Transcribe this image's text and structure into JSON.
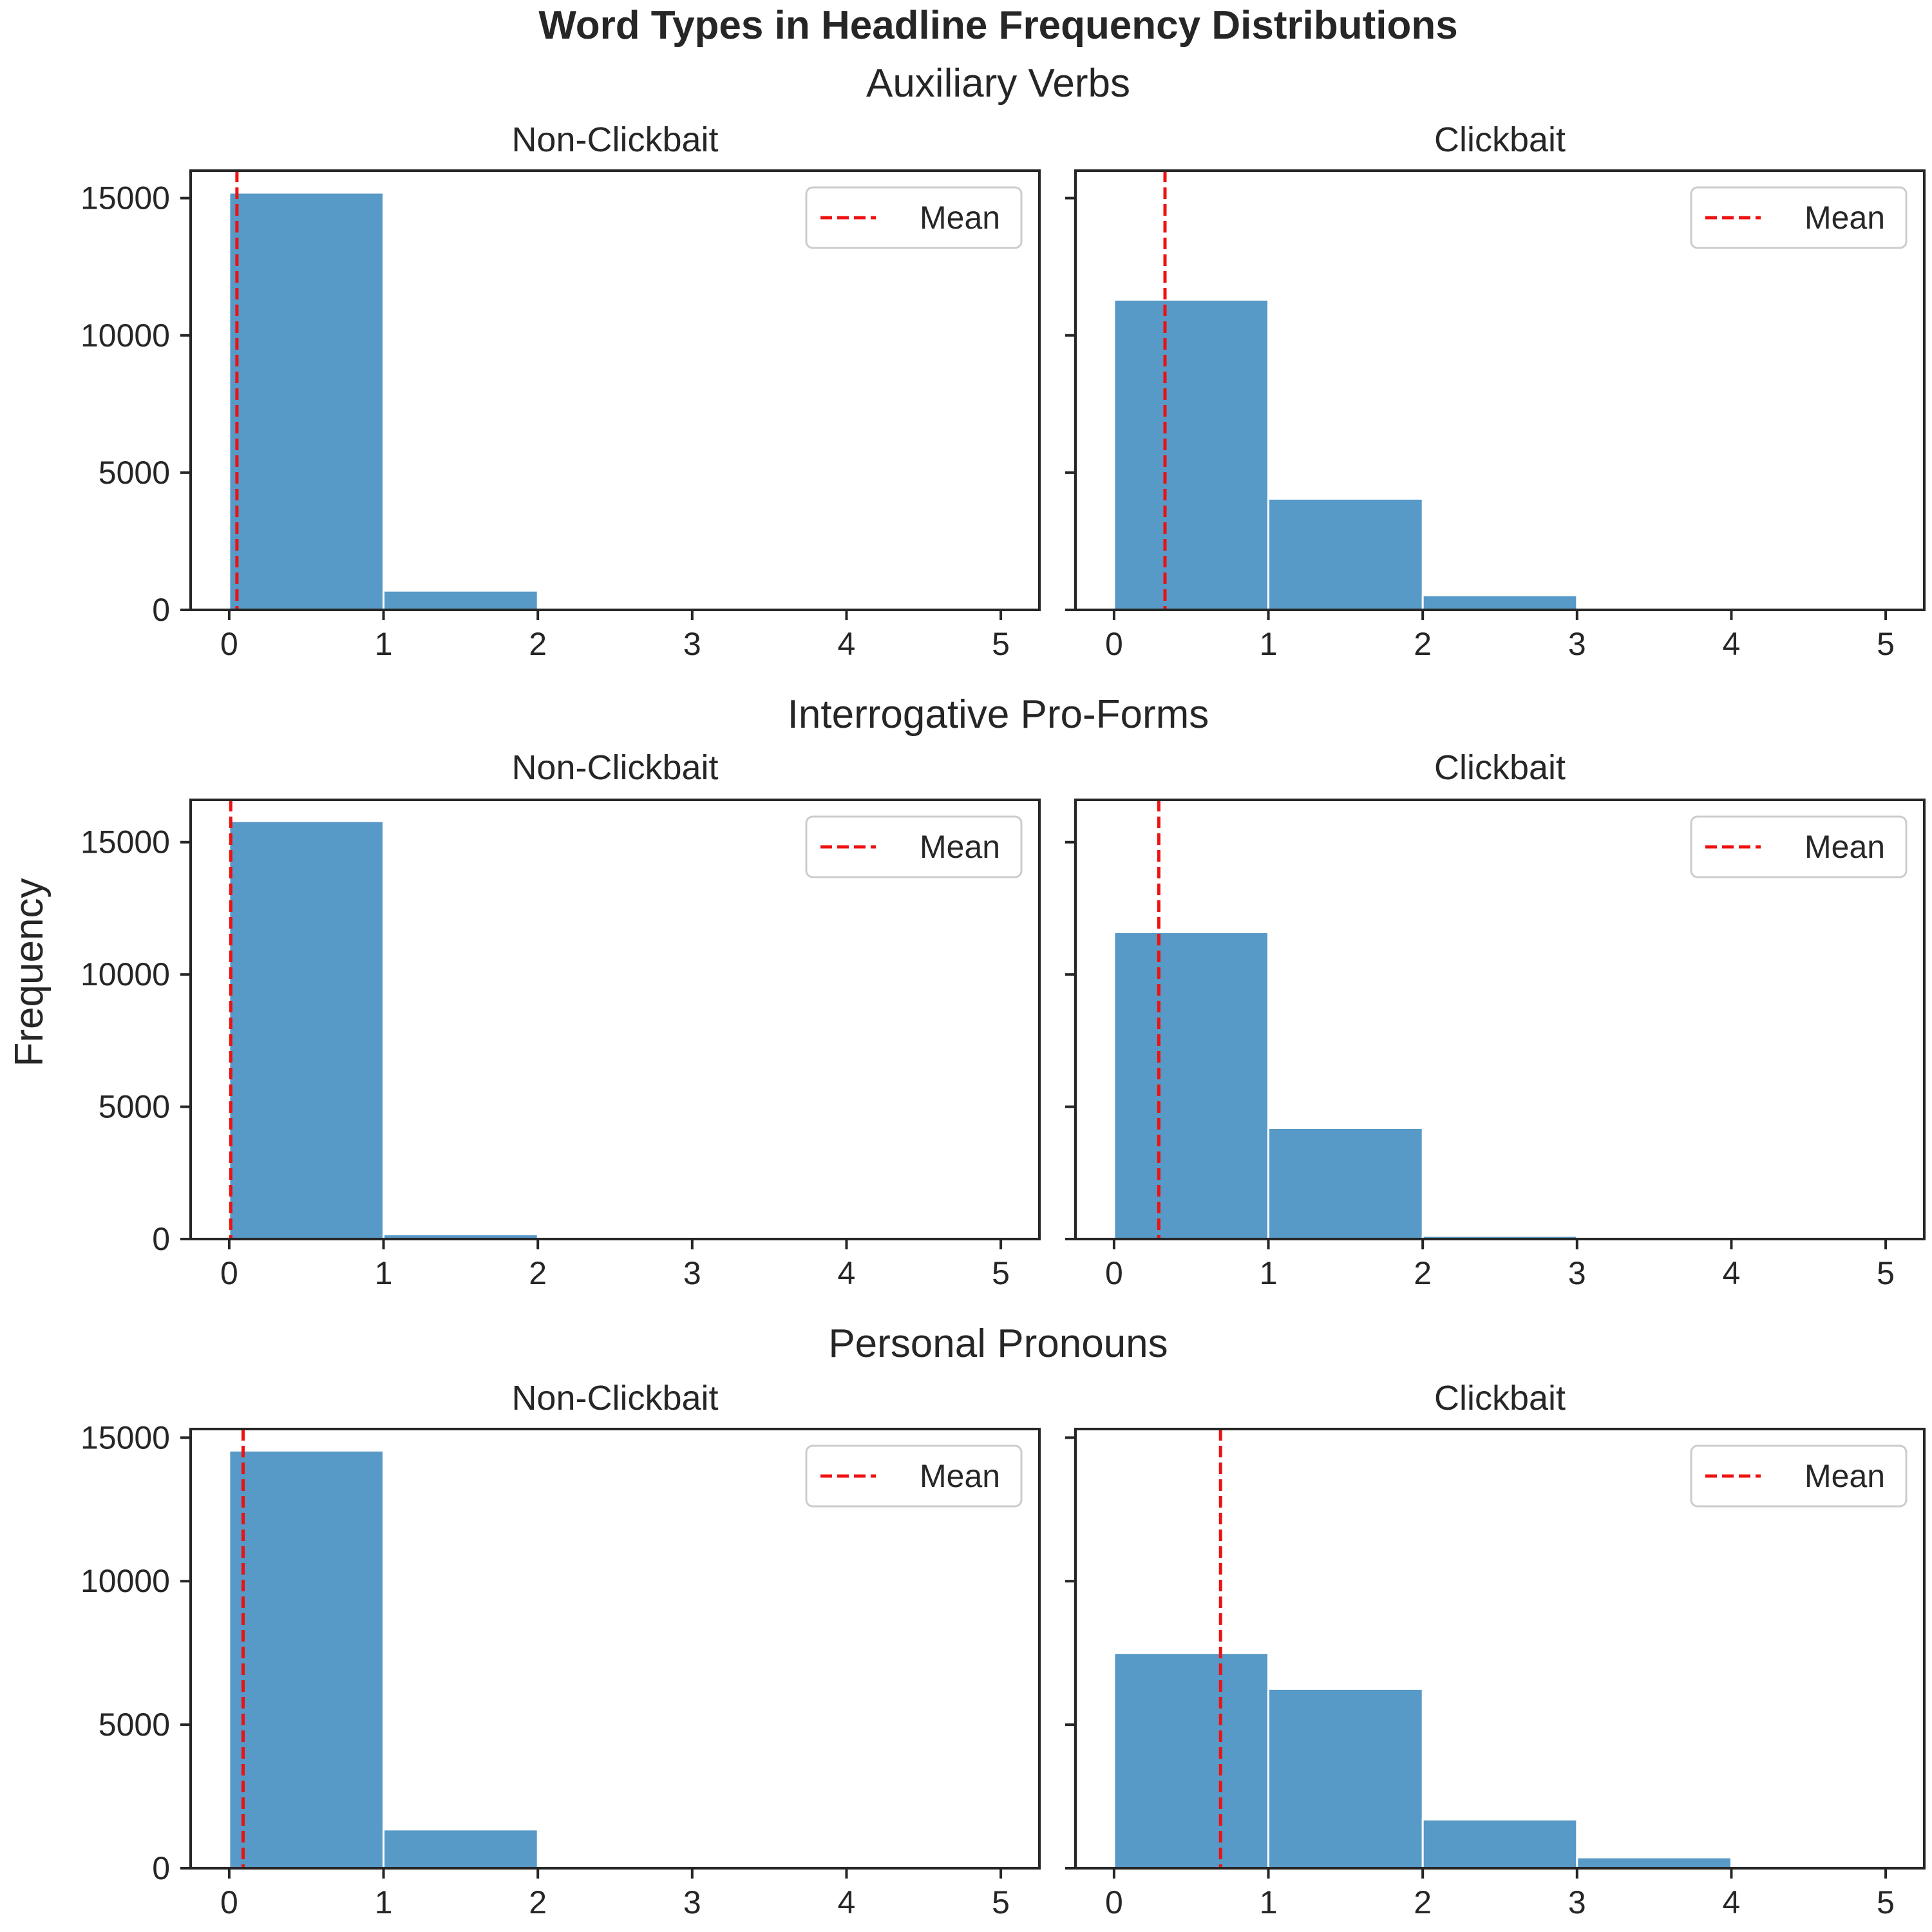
{
  "figure": {
    "title": "Word Types in Headline Frequency Distributions",
    "ylabel": "Frequency"
  },
  "colors": {
    "bar": "#5799c7",
    "mean_line": "#ee1111",
    "axis": "#262626",
    "legend_border": "#cccccc"
  },
  "chart_data": [
    {
      "type": "bar",
      "row_title": "Auxiliary Verbs",
      "title": "Non-Clickbait",
      "xlabel": "",
      "ylabel": "",
      "bin_edges": [
        0,
        1,
        2,
        3,
        4,
        5
      ],
      "values": [
        15200,
        700,
        0,
        0,
        0
      ],
      "mean": 0.05,
      "legend": [
        "Mean"
      ],
      "legend_position": "top-right",
      "xlim": [
        -0.25,
        5.25
      ],
      "ylim": [
        0,
        16000
      ],
      "xticks": [
        0,
        1,
        2,
        3,
        4,
        5
      ],
      "yticks": [
        0,
        5000,
        10000,
        15000
      ],
      "show_ytick_labels": true
    },
    {
      "type": "bar",
      "row_title": "Auxiliary Verbs",
      "title": "Clickbait",
      "xlabel": "",
      "ylabel": "",
      "bin_edges": [
        0,
        1,
        2,
        3,
        4,
        5
      ],
      "values": [
        11300,
        4050,
        530,
        0,
        0
      ],
      "mean": 0.33,
      "legend": [
        "Mean"
      ],
      "legend_position": "top-right",
      "xlim": [
        -0.25,
        5.25
      ],
      "ylim": [
        0,
        16000
      ],
      "xticks": [
        0,
        1,
        2,
        3,
        4,
        5
      ],
      "yticks": [
        0,
        5000,
        10000,
        15000
      ],
      "show_ytick_labels": false
    },
    {
      "type": "bar",
      "row_title": "Interrogative Pro-Forms",
      "title": "Non-Clickbait",
      "xlabel": "",
      "ylabel": "Frequency",
      "bin_edges": [
        0,
        1,
        2,
        3,
        4,
        5
      ],
      "values": [
        15800,
        180,
        0,
        0,
        0
      ],
      "mean": 0.01,
      "legend": [
        "Mean"
      ],
      "legend_position": "top-right",
      "xlim": [
        -0.25,
        5.25
      ],
      "ylim": [
        0,
        16600
      ],
      "xticks": [
        0,
        1,
        2,
        3,
        4,
        5
      ],
      "yticks": [
        0,
        5000,
        10000,
        15000
      ],
      "show_ytick_labels": true
    },
    {
      "type": "bar",
      "row_title": "Interrogative Pro-Forms",
      "title": "Clickbait",
      "xlabel": "",
      "ylabel": "",
      "bin_edges": [
        0,
        1,
        2,
        3,
        4,
        5
      ],
      "values": [
        11600,
        4200,
        120,
        0,
        0
      ],
      "mean": 0.29,
      "legend": [
        "Mean"
      ],
      "legend_position": "top-right",
      "xlim": [
        -0.25,
        5.25
      ],
      "ylim": [
        0,
        16600
      ],
      "xticks": [
        0,
        1,
        2,
        3,
        4,
        5
      ],
      "yticks": [
        0,
        5000,
        10000,
        15000
      ],
      "show_ytick_labels": false
    },
    {
      "type": "bar",
      "row_title": "Personal Pronouns",
      "title": "Non-Clickbait",
      "xlabel": "",
      "ylabel": "",
      "bin_edges": [
        0,
        1,
        2,
        3,
        4,
        5
      ],
      "values": [
        14550,
        1350,
        0,
        0,
        0
      ],
      "mean": 0.09,
      "legend": [
        "Mean"
      ],
      "legend_position": "top-right",
      "xlim": [
        -0.25,
        5.25
      ],
      "ylim": [
        0,
        15300
      ],
      "xticks": [
        0,
        1,
        2,
        3,
        4,
        5
      ],
      "yticks": [
        0,
        5000,
        10000,
        15000
      ],
      "show_ytick_labels": true
    },
    {
      "type": "bar",
      "row_title": "Personal Pronouns",
      "title": "Clickbait",
      "xlabel": "",
      "ylabel": "",
      "bin_edges": [
        0,
        1,
        2,
        3,
        4,
        5
      ],
      "values": [
        7500,
        6250,
        1700,
        380,
        0
      ],
      "mean": 0.69,
      "legend": [
        "Mean"
      ],
      "legend_position": "top-right",
      "xlim": [
        -0.25,
        5.25
      ],
      "ylim": [
        0,
        15300
      ],
      "xticks": [
        0,
        1,
        2,
        3,
        4,
        5
      ],
      "yticks": [
        0,
        5000,
        10000,
        15000
      ],
      "show_ytick_labels": false
    }
  ]
}
